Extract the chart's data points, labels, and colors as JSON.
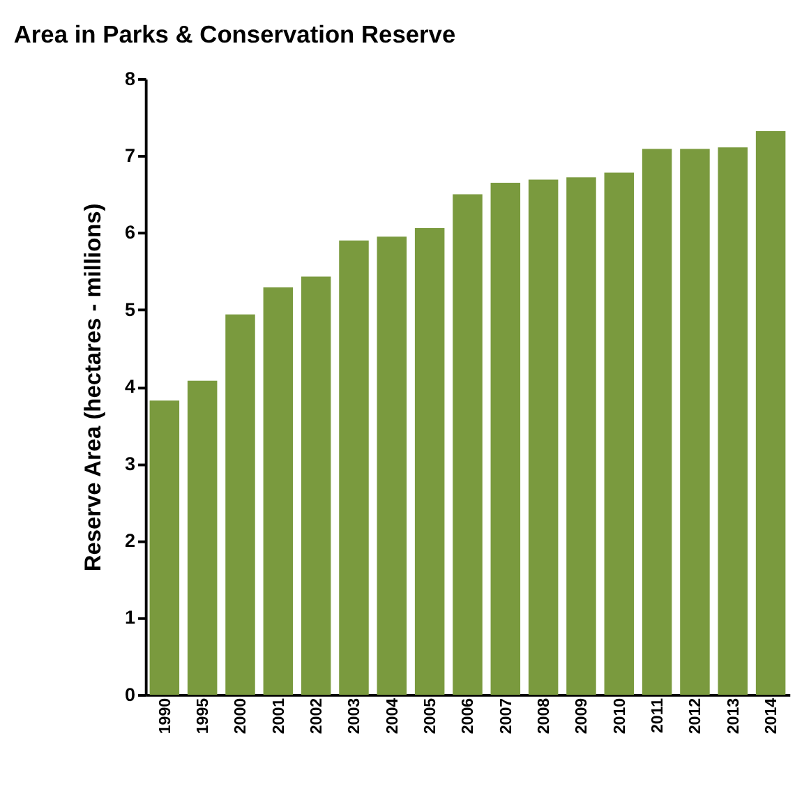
{
  "chart_data": {
    "type": "bar",
    "title": "Area in Parks & Conservation Reserve",
    "ylabel": "Reserve Area (hectares - millions)",
    "categories": [
      "1990",
      "1995",
      "2000",
      "2001",
      "2002",
      "2003",
      "2004",
      "2005",
      "2006",
      "2007",
      "2008",
      "2009",
      "2010",
      "2011",
      "2012",
      "2013",
      "2014"
    ],
    "values": [
      3.82,
      4.08,
      4.94,
      5.29,
      5.43,
      5.9,
      5.95,
      6.06,
      6.5,
      6.65,
      6.69,
      6.72,
      6.78,
      7.09,
      7.09,
      7.11,
      7.32
    ],
    "color": "#7a9a3e",
    "ylim": [
      0,
      8
    ],
    "yticks": [
      0,
      1,
      2,
      3,
      4,
      5,
      6,
      7,
      8
    ],
    "grid": false
  }
}
